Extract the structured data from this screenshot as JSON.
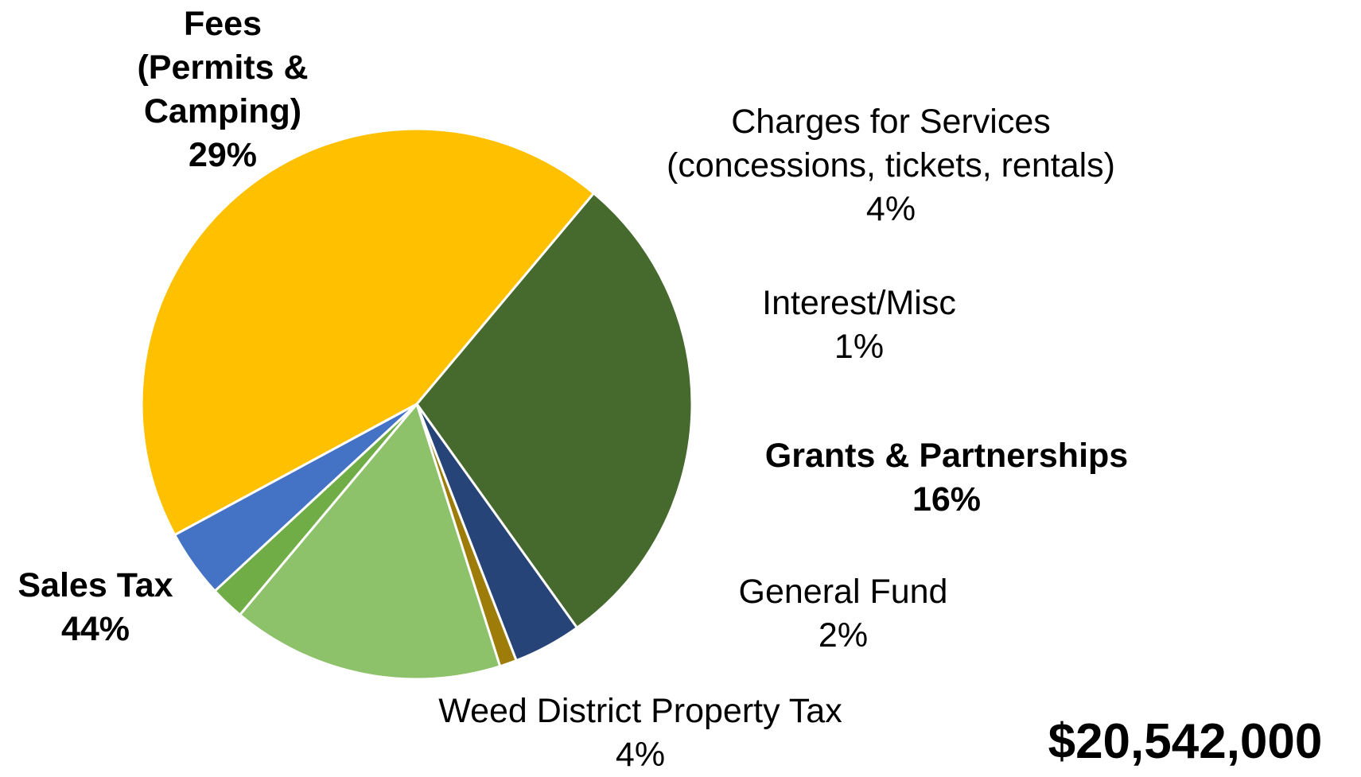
{
  "chart_data": {
    "type": "pie",
    "title": "",
    "total_label": "$20,542,000",
    "slices": [
      {
        "label_lines": [
          "Fees",
          "(Permits &",
          "Camping)"
        ],
        "pct_text": "29%",
        "value": 29,
        "color": "#466A2E",
        "bold": true
      },
      {
        "label_lines": [
          "Charges for Services",
          "(concessions, tickets, rentals)"
        ],
        "pct_text": "4%",
        "value": 4,
        "color": "#264478",
        "bold": false
      },
      {
        "label_lines": [
          "Interest/Misc"
        ],
        "pct_text": "1%",
        "value": 1,
        "color": "#9E7C0A",
        "bold": false
      },
      {
        "label_lines": [
          "Grants & Partnerships"
        ],
        "pct_text": "16%",
        "value": 16,
        "color": "#8DC16A",
        "bold": true
      },
      {
        "label_lines": [
          "General Fund"
        ],
        "pct_text": "2%",
        "value": 2,
        "color": "#70AD47",
        "bold": false
      },
      {
        "label_lines": [
          "Weed District Property Tax"
        ],
        "pct_text": "4%",
        "value": 4,
        "color": "#4472C4",
        "bold": false
      },
      {
        "label_lines": [
          "Sales Tax"
        ],
        "pct_text": "44%",
        "value": 44,
        "color": "#FFC000",
        "bold": true
      }
    ]
  }
}
